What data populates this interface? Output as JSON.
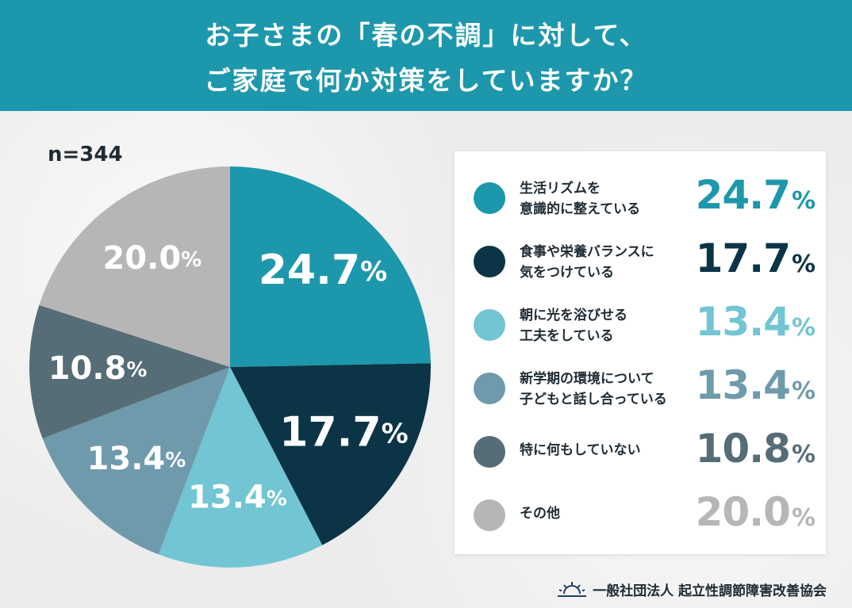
{
  "header": {
    "line1": "お子さまの「春の不調」に対して、",
    "line2": "ご家庭で何か対策をしていますか？"
  },
  "sample": "n=344",
  "chart_data": {
    "type": "pie",
    "title": "お子さまの「春の不調」に対して、ご家庭で何か対策をしていますか？",
    "unit": "%",
    "categories": [
      "生活リズムを意識的に整えている",
      "食事や栄養バランスに気をつけている",
      "朝に光を浴びせる工夫をしている",
      "新学期の環境について子どもと話し合っている",
      "特に何もしていない",
      "その他"
    ],
    "values": [
      24.7,
      17.7,
      13.4,
      13.4,
      10.8,
      20.0
    ],
    "colors": [
      "#1d97ab",
      "#0c3447",
      "#72c5d2",
      "#6f9aab",
      "#566c76",
      "#b6b6b6"
    ],
    "slice_labels": [
      "24.7",
      "17.7",
      "13.4",
      "13.4",
      "10.8",
      "20.0"
    ],
    "label_color": "#ffffff"
  },
  "legend": {
    "items": [
      {
        "line1": "生活リズムを",
        "line2": "意識的に整えている",
        "num": "24.7",
        "pct": "%",
        "color": "#1d97ab"
      },
      {
        "line1": "食事や栄養バランスに",
        "line2": "気をつけている",
        "num": "17.7",
        "pct": "%",
        "color": "#0c3447"
      },
      {
        "line1": "朝に光を浴びせる",
        "line2": "工夫をしている",
        "num": "13.4",
        "pct": "%",
        "color": "#72c5d2"
      },
      {
        "line1": "新学期の環境について",
        "line2": "子どもと話し合っている",
        "num": "13.4",
        "pct": "%",
        "color": "#6f9aab"
      },
      {
        "line1": "特に何もしていない",
        "line2": "",
        "num": "10.8",
        "pct": "%",
        "color": "#566c76"
      },
      {
        "line1": "その他",
        "line2": "",
        "num": "20.0",
        "pct": "%",
        "color": "#b6b6b6"
      }
    ]
  },
  "footer": {
    "org": "一般社団法人 起立性調節障害改善協会",
    "logo_icon": "sunrise-icon"
  }
}
